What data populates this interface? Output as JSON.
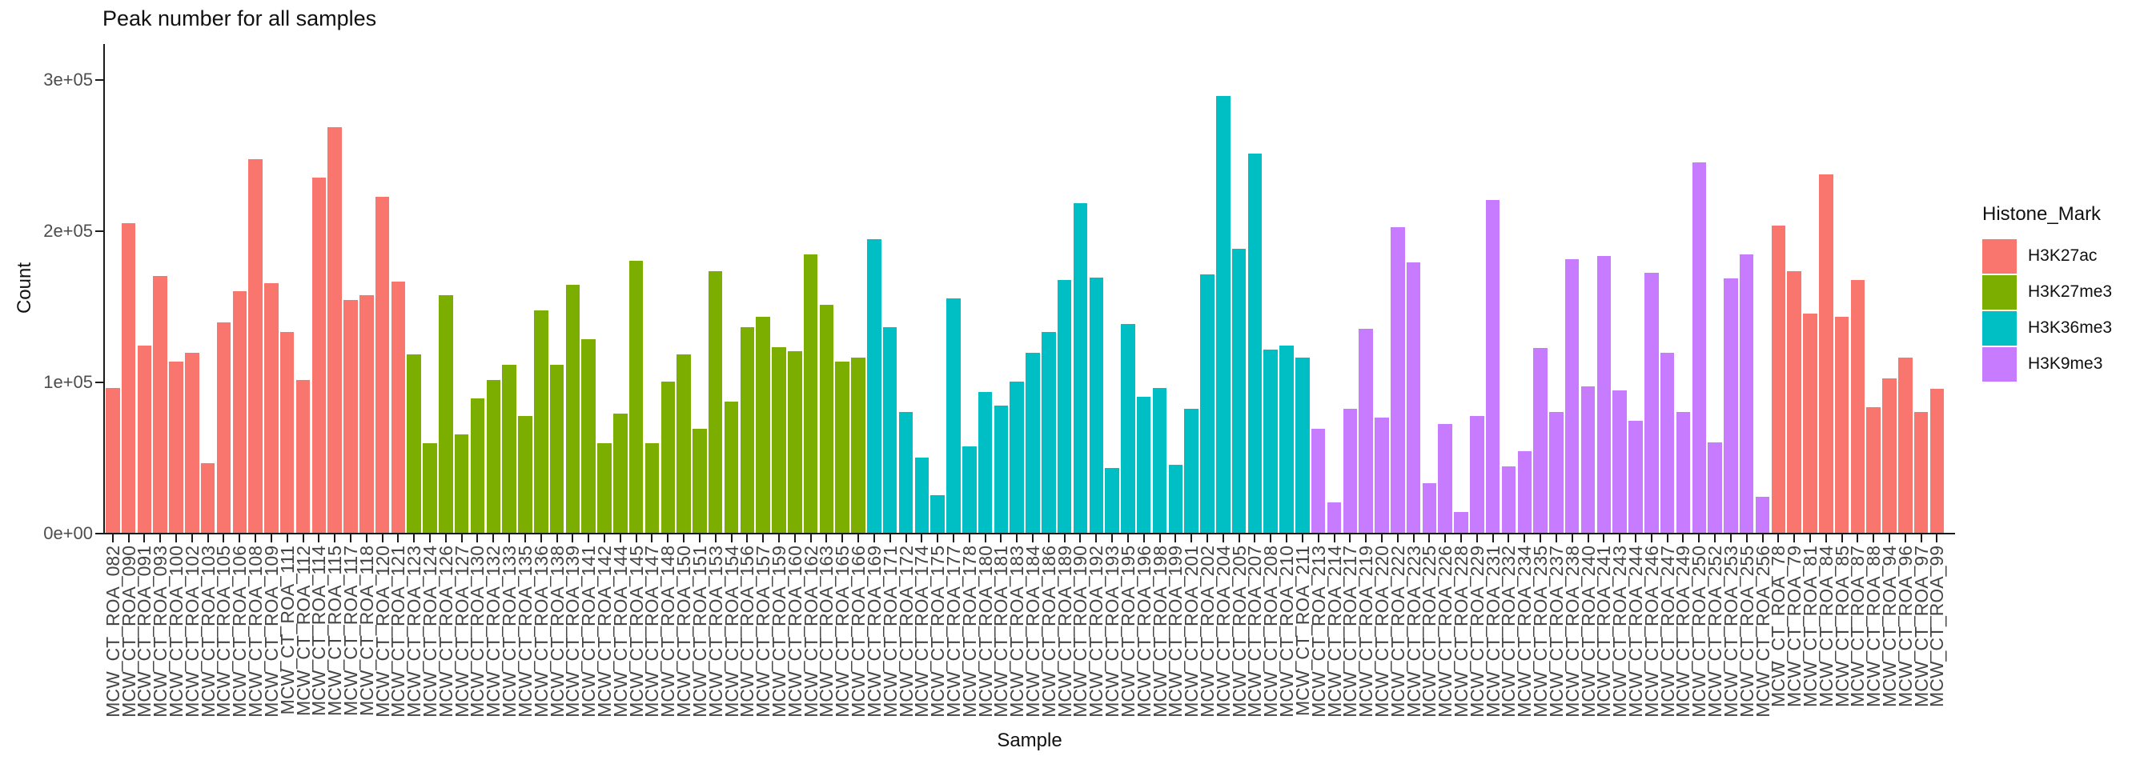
{
  "title": "Peak number for all samples",
  "axes": {
    "x_label": "Sample",
    "y_label": "Count"
  },
  "legend": {
    "title": "Histone_Mark",
    "entries": [
      {
        "label": "H3K27ac",
        "color": "#F8766D"
      },
      {
        "label": "H3K27me3",
        "color": "#7CAE00"
      },
      {
        "label": "H3K36me3",
        "color": "#00BFC4"
      },
      {
        "label": "H3K9me3",
        "color": "#C77CFF"
      }
    ]
  },
  "chart_data": {
    "type": "bar",
    "title": "Peak number for all samples",
    "xlabel": "Sample",
    "ylabel": "Count",
    "ylim": [
      0,
      310000
    ],
    "grid": false,
    "legend_position": "right",
    "x_label_rotation": 90,
    "y_ticks": [
      {
        "value": 0,
        "label": "0e+00"
      },
      {
        "value": 100000,
        "label": "1e+05"
      },
      {
        "value": 200000,
        "label": "2e+05"
      },
      {
        "value": 300000,
        "label": "3e+05"
      }
    ],
    "mark_spans": [
      {
        "mark": "H3K27ac",
        "from": 0,
        "to": 18
      },
      {
        "mark": "H3K27me3",
        "from": 19,
        "to": 47
      },
      {
        "mark": "H3K36me3",
        "from": 48,
        "to": 75
      },
      {
        "mark": "H3K9me3",
        "from": 76,
        "to": 104
      },
      {
        "mark": "H3K27ac",
        "from": 105,
        "to": 115
      }
    ],
    "colors": {
      "H3K27ac": "#F8766D",
      "H3K27me3": "#7CAE00",
      "H3K36me3": "#00BFC4",
      "H3K9me3": "#C77CFF"
    },
    "categories": [
      "MCW_CT_ROA_082",
      "MCW_CT_ROA_090",
      "MCW_CT_ROA_091",
      "MCW_CT_ROA_093",
      "MCW_CT_ROA_100",
      "MCW_CT_ROA_102",
      "MCW_CT_ROA_103",
      "MCW_CT_ROA_105",
      "MCW_CT_ROA_106",
      "MCW_CT_ROA_108",
      "MCW_CT_ROA_109",
      "MCW_CT_ROA_111",
      "MCW_CT_ROA_112",
      "MCW_CT_ROA_114",
      "MCW_CT_ROA_115",
      "MCW_CT_ROA_117",
      "MCW_CT_ROA_118",
      "MCW_CT_ROA_120",
      "MCW_CT_ROA_121",
      "MCW_CT_ROA_123",
      "MCW_CT_ROA_124",
      "MCW_CT_ROA_126",
      "MCW_CT_ROA_127",
      "MCW_CT_ROA_130",
      "MCW_CT_ROA_132",
      "MCW_CT_ROA_133",
      "MCW_CT_ROA_135",
      "MCW_CT_ROA_136",
      "MCW_CT_ROA_138",
      "MCW_CT_ROA_139",
      "MCW_CT_ROA_141",
      "MCW_CT_ROA_142",
      "MCW_CT_ROA_144",
      "MCW_CT_ROA_145",
      "MCW_CT_ROA_147",
      "MCW_CT_ROA_148",
      "MCW_CT_ROA_150",
      "MCW_CT_ROA_151",
      "MCW_CT_ROA_153",
      "MCW_CT_ROA_154",
      "MCW_CT_ROA_156",
      "MCW_CT_ROA_157",
      "MCW_CT_ROA_159",
      "MCW_CT_ROA_160",
      "MCW_CT_ROA_162",
      "MCW_CT_ROA_163",
      "MCW_CT_ROA_165",
      "MCW_CT_ROA_166",
      "MCW_CT_ROA_169",
      "MCW_CT_ROA_171",
      "MCW_CT_ROA_172",
      "MCW_CT_ROA_174",
      "MCW_CT_ROA_175",
      "MCW_CT_ROA_177",
      "MCW_CT_ROA_178",
      "MCW_CT_ROA_180",
      "MCW_CT_ROA_181",
      "MCW_CT_ROA_183",
      "MCW_CT_ROA_184",
      "MCW_CT_ROA_186",
      "MCW_CT_ROA_189",
      "MCW_CT_ROA_190",
      "MCW_CT_ROA_192",
      "MCW_CT_ROA_193",
      "MCW_CT_ROA_195",
      "MCW_CT_ROA_196",
      "MCW_CT_ROA_198",
      "MCW_CT_ROA_199",
      "MCW_CT_ROA_201",
      "MCW_CT_ROA_202",
      "MCW_CT_ROA_204",
      "MCW_CT_ROA_205",
      "MCW_CT_ROA_207",
      "MCW_CT_ROA_208",
      "MCW_CT_ROA_210",
      "MCW_CT_ROA_211",
      "MCW_CT_ROA_213",
      "MCW_CT_ROA_214",
      "MCW_CT_ROA_217",
      "MCW_CT_ROA_219",
      "MCW_CT_ROA_220",
      "MCW_CT_ROA_222",
      "MCW_CT_ROA_223",
      "MCW_CT_ROA_225",
      "MCW_CT_ROA_226",
      "MCW_CT_ROA_228",
      "MCW_CT_ROA_229",
      "MCW_CT_ROA_231",
      "MCW_CT_ROA_232",
      "MCW_CT_ROA_234",
      "MCW_CT_ROA_235",
      "MCW_CT_ROA_237",
      "MCW_CT_ROA_238",
      "MCW_CT_ROA_240",
      "MCW_CT_ROA_241",
      "MCW_CT_ROA_243",
      "MCW_CT_ROA_244",
      "MCW_CT_ROA_246",
      "MCW_CT_ROA_247",
      "MCW_CT_ROA_249",
      "MCW_CT_ROA_250",
      "MCW_CT_ROA_252",
      "MCW_CT_ROA_253",
      "MCW_CT_ROA_255",
      "MCW_CT_ROA_256",
      "MCW_CT_ROA_78",
      "MCW_CT_ROA_79",
      "MCW_CT_ROA_81",
      "MCW_CT_ROA_84",
      "MCW_CT_ROA_85",
      "MCW_CT_ROA_87",
      "MCW_CT_ROA_88",
      "MCW_CT_ROA_94",
      "MCW_CT_ROA_96",
      "MCW_CT_ROA_97",
      "MCW_CT_ROA_99"
    ],
    "values": [
      96000,
      205000,
      124000,
      170000,
      113000,
      119000,
      46000,
      139000,
      160000,
      247000,
      165000,
      133000,
      101000,
      235000,
      268000,
      154000,
      157000,
      222000,
      166000,
      118000,
      59000,
      157000,
      65000,
      89000,
      101000,
      111000,
      77000,
      147000,
      111000,
      164000,
      128000,
      59000,
      79000,
      180000,
      59000,
      100000,
      118000,
      69000,
      173000,
      87000,
      136000,
      143000,
      123000,
      120000,
      184000,
      151000,
      113000,
      116000,
      194000,
      136000,
      80000,
      50000,
      25000,
      155000,
      57000,
      93000,
      84000,
      100000,
      119000,
      133000,
      167000,
      218000,
      169000,
      43000,
      138000,
      90000,
      96000,
      45000,
      82000,
      171000,
      289000,
      188000,
      251000,
      121000,
      124000,
      116000,
      69000,
      20000,
      82000,
      135000,
      76000,
      202000,
      179000,
      33000,
      72000,
      14000,
      77000,
      220000,
      44000,
      54000,
      122000,
      80000,
      181000,
      97000,
      183000,
      94000,
      74000,
      172000,
      119000,
      80000,
      245000,
      60000,
      168000,
      184000,
      24000,
      203000,
      173000,
      145000,
      237000,
      143000,
      167000,
      83000,
      102000,
      116000,
      80000,
      95000
    ]
  }
}
